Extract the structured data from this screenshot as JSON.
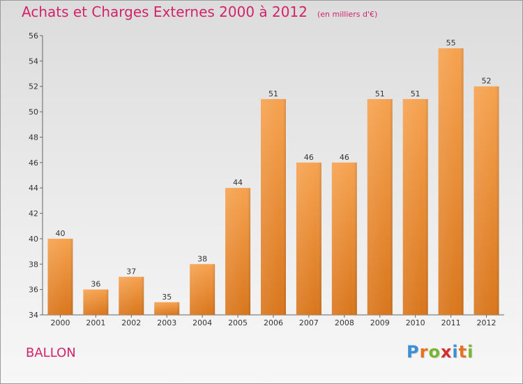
{
  "header": {
    "title": "Achats et Charges Externes 2000 à 2012",
    "subtitle": "(en milliers d'€)"
  },
  "footer": {
    "commune": "BALLON",
    "logo_letters": [
      "P",
      "r",
      "o",
      "x",
      "i",
      "t",
      "i"
    ],
    "logo_colors": [
      "#3b8fd4",
      "#e8711f",
      "#7ab52f",
      "#d32f2f",
      "#3b8fd4",
      "#e8711f",
      "#7ab52f"
    ]
  },
  "chart_data": {
    "type": "bar",
    "categories": [
      "2000",
      "2001",
      "2002",
      "2003",
      "2004",
      "2005",
      "2006",
      "2007",
      "2008",
      "2009",
      "2010",
      "2011",
      "2012"
    ],
    "values": [
      40,
      36,
      37,
      35,
      38,
      44,
      51,
      46,
      46,
      51,
      51,
      55,
      52
    ],
    "ylim": [
      34,
      56
    ],
    "yticks": [
      34,
      36,
      38,
      40,
      42,
      44,
      46,
      48,
      50,
      52,
      54,
      56
    ],
    "grid": false,
    "bar_color_top": "#f6a24f",
    "bar_color_bottom": "#d9761c"
  }
}
